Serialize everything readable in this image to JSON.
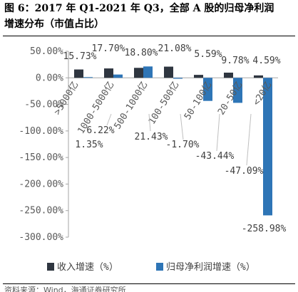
{
  "figure": {
    "title_line_1": "图 6：2017 年 Q1-2021 年 Q3，全部 A 股的归母净利润",
    "title_line_2": "增速分布（市值占比）",
    "source": "资料来源：Wind，海通证券研究所"
  },
  "chart_data": {
    "type": "bar",
    "title": "",
    "xlabel": "",
    "ylabel": "",
    "ylim": [
      -300,
      50
    ],
    "yticks": [
      50,
      0,
      -50,
      -100,
      -150,
      -200,
      -250,
      -300
    ],
    "ytick_labels": [
      "50.00%",
      "0.00%",
      "-50.00%",
      "-100.00%",
      "-150.00%",
      "-200.00%",
      "-250.00%",
      "-300.00%"
    ],
    "grid": false,
    "legend": "bottom",
    "categories": [
      ">5000亿",
      "1000-5000亿",
      "500-1000亿",
      "100-500亿",
      "50-100亿",
      "20-50亿",
      "<20亿"
    ],
    "series": [
      {
        "name": "收入增速（%）",
        "color": "#2f3640",
        "values": [
          15.73,
          17.7,
          18.8,
          21.08,
          5.59,
          9.78,
          4.59
        ],
        "labels": [
          "15.73%",
          "17.70%",
          "18.80%",
          "21.08%",
          "5.59%",
          "9.78%",
          "4.59%"
        ]
      },
      {
        "name": "归母净利润增速（%）",
        "color": "#2e75b6",
        "values": [
          1.35,
          6.22,
          21.43,
          -1.7,
          -43.44,
          -47.09,
          -258.98
        ],
        "labels": [
          "1.35%",
          "6.22%",
          "21.43%",
          "-1.70%",
          "-43.44%",
          "-47.09%",
          "-258.98%"
        ]
      }
    ]
  }
}
